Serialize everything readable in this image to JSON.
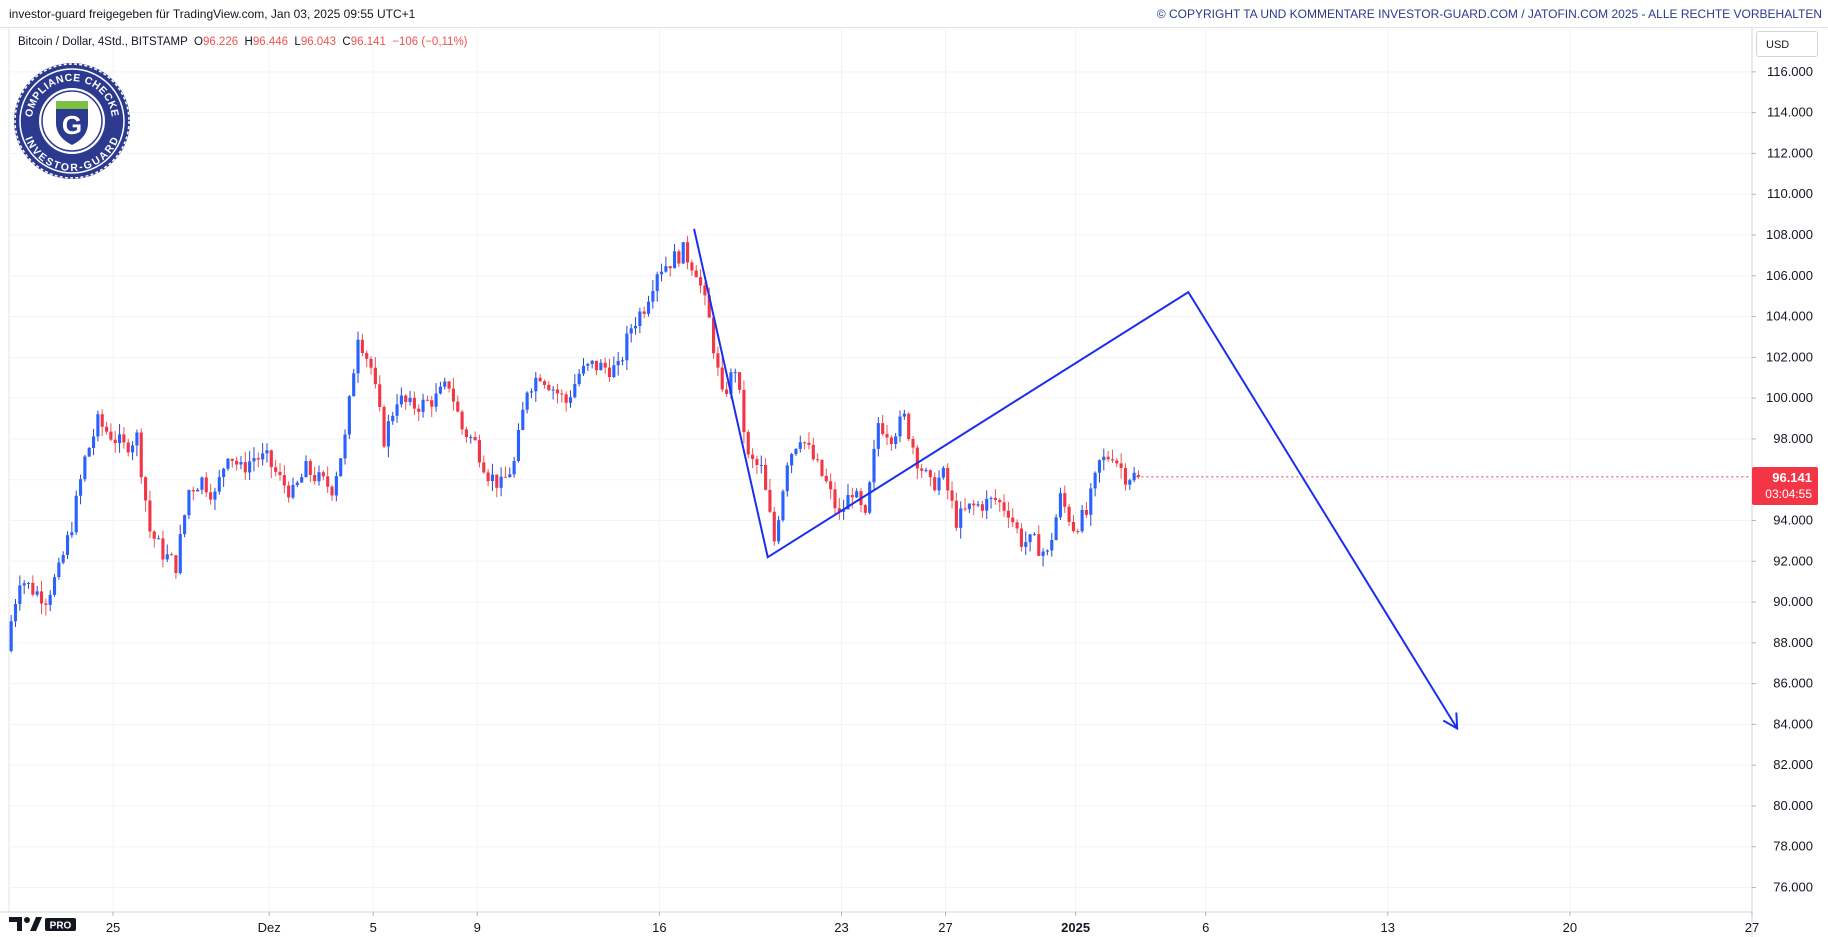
{
  "header": {
    "share_text": "investor-guard freigegeben für TradingView.com, Jan 03, 2025 09:55 UTC+1",
    "copyright": "© COPYRIGHT TA UND KOMMENTARE INVESTOR-GUARD.COM / JATOFIN.COM 2025 - ALLE RECHTE VORBEHALTEN"
  },
  "symbol": {
    "name": "Bitcoin / Dollar, 4Std., BITSTAMP",
    "open_label": "O",
    "open": "96.226",
    "high_label": "H",
    "high": "96.446",
    "low_label": "L",
    "low": "96.043",
    "close_label": "C",
    "close": "96.141",
    "change": "−106 (−0,11%)"
  },
  "badge": {
    "top_text": "COMPLIANCE CHECKED",
    "bottom_text": "INVESTOR-GUARD",
    "letter": "G"
  },
  "price_axis": {
    "unit": "USD",
    "last_price": "96.141",
    "countdown": "03:04:55"
  },
  "footer": {
    "logo_text": "PRO"
  },
  "colors": {
    "up": "#2962ff",
    "down": "#f23645",
    "wick_up": "#2a48c8",
    "wick_down": "#ef5350",
    "projection": "#1a2ef0",
    "grid": "#f0f3fa",
    "price_tag": "#f23645"
  },
  "chart_data": {
    "type": "candlestick",
    "interval": "4h",
    "ylim": [
      74800,
      118200
    ],
    "yticks": [
      76000,
      78000,
      80000,
      82000,
      84000,
      86000,
      88000,
      90000,
      92000,
      94000,
      96000,
      98000,
      100000,
      102000,
      104000,
      106000,
      108000,
      110000,
      112000,
      114000,
      116000
    ],
    "ytick_labels": [
      "76.000",
      "78.000",
      "80.000",
      "82.000",
      "84.000",
      "86.000",
      "88.000",
      "90.000",
      "92.000",
      "94.000",
      "96.000",
      "98.000",
      "100.000",
      "102.000",
      "104.000",
      "106.000",
      "108.000",
      "110.000",
      "112.000",
      "114.000",
      "116.000"
    ],
    "x_dates": [
      "2024-11-21",
      "2025-01-27"
    ],
    "xticks": [
      {
        "date": "2024-11-25",
        "label": "25",
        "bold": false
      },
      {
        "date": "2024-12-01",
        "label": "Dez",
        "bold": false
      },
      {
        "date": "2024-12-05",
        "label": "5",
        "bold": false
      },
      {
        "date": "2024-12-09",
        "label": "9",
        "bold": false
      },
      {
        "date": "2024-12-16",
        "label": "16",
        "bold": false
      },
      {
        "date": "2024-12-23",
        "label": "23",
        "bold": false
      },
      {
        "date": "2024-12-27",
        "label": "27",
        "bold": false
      },
      {
        "date": "2025-01-01",
        "label": "2025",
        "bold": true
      },
      {
        "date": "2025-01-06",
        "label": "6",
        "bold": false
      },
      {
        "date": "2025-01-13",
        "label": "13",
        "bold": false
      },
      {
        "date": "2025-01-20",
        "label": "20",
        "bold": false
      },
      {
        "date": "2025-01-27",
        "label": "27",
        "bold": false
      }
    ],
    "start_datetime": "2024-11-21T00:00",
    "candle_hours": 4,
    "close_path": [
      {
        "date": "2024-11-21",
        "close": 88000
      },
      {
        "date": "2024-11-21 12:00",
        "close": 91200
      },
      {
        "date": "2024-11-22",
        "close": 90600
      },
      {
        "date": "2024-11-22 12:00",
        "close": 90200
      },
      {
        "date": "2024-11-23",
        "close": 91500
      },
      {
        "date": "2024-11-23 12:00",
        "close": 93800
      },
      {
        "date": "2024-11-24",
        "close": 97000
      },
      {
        "date": "2024-11-24 12:00",
        "close": 98800
      },
      {
        "date": "2024-11-25",
        "close": 98200
      },
      {
        "date": "2024-11-25 12:00",
        "close": 97600
      },
      {
        "date": "2024-11-26",
        "close": 98100
      },
      {
        "date": "2024-11-26 12:00",
        "close": 93500
      },
      {
        "date": "2024-11-27",
        "close": 92400
      },
      {
        "date": "2024-11-27 12:00",
        "close": 91800
      },
      {
        "date": "2024-11-28",
        "close": 95500
      },
      {
        "date": "2024-11-28 12:00",
        "close": 96000
      },
      {
        "date": "2024-11-29",
        "close": 95200
      },
      {
        "date": "2024-11-29 12:00",
        "close": 97400
      },
      {
        "date": "2024-11-30",
        "close": 96500
      },
      {
        "date": "2024-11-30 12:00",
        "close": 97100
      },
      {
        "date": "2024-12-01",
        "close": 97000
      },
      {
        "date": "2024-12-01 12:00",
        "close": 96000
      },
      {
        "date": "2024-12-02",
        "close": 95300
      },
      {
        "date": "2024-12-02 12:00",
        "close": 96500
      },
      {
        "date": "2024-12-03",
        "close": 96000
      },
      {
        "date": "2024-12-03 12:00",
        "close": 95600
      },
      {
        "date": "2024-12-04",
        "close": 98000
      },
      {
        "date": "2024-12-04 12:00",
        "close": 103200
      },
      {
        "date": "2024-12-05",
        "close": 101500
      },
      {
        "date": "2024-12-05 12:00",
        "close": 98000
      },
      {
        "date": "2024-12-06",
        "close": 100000
      },
      {
        "date": "2024-12-06 12:00",
        "close": 99600
      },
      {
        "date": "2024-12-07",
        "close": 99700
      },
      {
        "date": "2024-12-07 12:00",
        "close": 100000
      },
      {
        "date": "2024-12-08",
        "close": 100700
      },
      {
        "date": "2024-12-08 12:00",
        "close": 98500
      },
      {
        "date": "2024-12-09",
        "close": 97800
      },
      {
        "date": "2024-12-09 12:00",
        "close": 96300
      },
      {
        "date": "2024-12-10",
        "close": 95700
      },
      {
        "date": "2024-12-10 12:00",
        "close": 96800
      },
      {
        "date": "2024-12-11",
        "close": 100500
      },
      {
        "date": "2024-12-11 12:00",
        "close": 101200
      },
      {
        "date": "2024-12-12",
        "close": 100500
      },
      {
        "date": "2024-12-12 12:00",
        "close": 99800
      },
      {
        "date": "2024-12-13",
        "close": 101200
      },
      {
        "date": "2024-12-13 12:00",
        "close": 101600
      },
      {
        "date": "2024-12-14",
        "close": 101500
      },
      {
        "date": "2024-12-14 12:00",
        "close": 101400
      },
      {
        "date": "2024-12-15",
        "close": 103500
      },
      {
        "date": "2024-12-15 12:00",
        "close": 104500
      },
      {
        "date": "2024-12-16",
        "close": 106300
      },
      {
        "date": "2024-12-16 12:00",
        "close": 106700
      },
      {
        "date": "2024-12-17",
        "close": 107200
      },
      {
        "date": "2024-12-17 12:00",
        "close": 106300
      },
      {
        "date": "2024-12-18",
        "close": 103800
      },
      {
        "date": "2024-12-18 12:00",
        "close": 100000
      },
      {
        "date": "2024-12-19",
        "close": 101500
      },
      {
        "date": "2024-12-19 12:00",
        "close": 97000
      },
      {
        "date": "2024-12-20",
        "close": 96500
      },
      {
        "date": "2024-12-20 12:00",
        "close": 93000
      },
      {
        "date": "2024-12-21",
        "close": 97000
      },
      {
        "date": "2024-12-21 12:00",
        "close": 98200
      },
      {
        "date": "2024-12-22",
        "close": 97000
      },
      {
        "date": "2024-12-22 12:00",
        "close": 95800
      },
      {
        "date": "2024-12-23",
        "close": 94200
      },
      {
        "date": "2024-12-23 12:00",
        "close": 95500
      },
      {
        "date": "2024-12-24",
        "close": 94000
      },
      {
        "date": "2024-12-24 12:00",
        "close": 98800
      },
      {
        "date": "2024-12-25",
        "close": 98200
      },
      {
        "date": "2024-12-25 12:00",
        "close": 99000
      },
      {
        "date": "2024-12-26",
        "close": 97000
      },
      {
        "date": "2024-12-26 12:00",
        "close": 95700
      },
      {
        "date": "2024-12-27",
        "close": 96200
      },
      {
        "date": "2024-12-27 12:00",
        "close": 94000
      },
      {
        "date": "2024-12-28",
        "close": 94600
      },
      {
        "date": "2024-12-28 12:00",
        "close": 94800
      },
      {
        "date": "2024-12-29",
        "close": 95000
      },
      {
        "date": "2024-12-29 12:00",
        "close": 94500
      },
      {
        "date": "2024-12-30",
        "close": 93000
      },
      {
        "date": "2024-12-30 12:00",
        "close": 92900
      },
      {
        "date": "2024-12-31",
        "close": 92300
      },
      {
        "date": "2024-12-31 12:00",
        "close": 95100
      },
      {
        "date": "2025-01-01",
        "close": 93700
      },
      {
        "date": "2025-01-01 12:00",
        "close": 94300
      },
      {
        "date": "2025-01-02",
        "close": 96800
      },
      {
        "date": "2025-01-02 12:00",
        "close": 97300
      },
      {
        "date": "2025-01-03",
        "close": 96200
      }
    ],
    "last_candle": {
      "date": "2025-01-03 08:00",
      "open": 96226,
      "high": 96446,
      "low": 96043,
      "close": 96141
    },
    "projection": [
      {
        "date": "2024-12-17 08:00",
        "price": 108300
      },
      {
        "date": "2024-12-20 04:00",
        "price": 92200
      },
      {
        "date": "2025-01-05 08:00",
        "price": 105200
      },
      {
        "date": "2025-01-15 16:00",
        "price": 83800
      }
    ]
  }
}
